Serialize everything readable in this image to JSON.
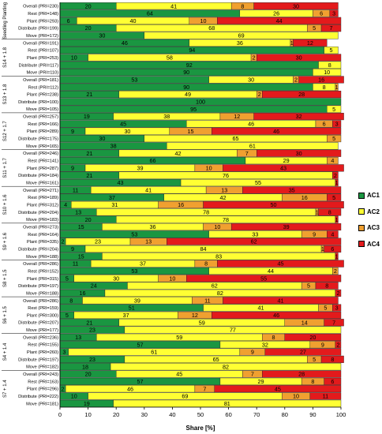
{
  "chart_data": {
    "type": "bar",
    "orientation": "horizontal-stacked",
    "xlabel": "Share [%]",
    "xlim": [
      0,
      100
    ],
    "xticks": [
      0,
      10,
      20,
      30,
      40,
      50,
      60,
      70,
      80,
      90,
      100
    ],
    "legend": {
      "placement": "right",
      "entries": [
        "AC1",
        "AC2",
        "AC3",
        "AC4"
      ]
    },
    "colors": {
      "AC1": "#1a9641",
      "AC2": "#ffff33",
      "AC3": "#f0a030",
      "AC4": "#e31a1c"
    },
    "series": [
      {
        "name": "AC1"
      },
      {
        "name": "AC2"
      },
      {
        "name": "AC3"
      },
      {
        "name": "AC4"
      }
    ],
    "groups": [
      {
        "label": "Seedling Planting",
        "rows": [
          {
            "label": "Overall (PRI=230)",
            "values": [
              20,
              41,
              8,
              30
            ]
          },
          {
            "label": "Rest (PRI=148)",
            "values": [
              64,
              26,
              6,
              3
            ]
          },
          {
            "label": "Plant (PRI=293)",
            "values": [
              6,
              40,
              10,
              44
            ]
          },
          {
            "label": "Distribute (PRI=199)",
            "values": [
              20,
              68,
              5,
              7
            ]
          },
          {
            "label": "Move (PRI=172)",
            "values": [
              30,
              69,
              0,
              0
            ]
          }
        ]
      },
      {
        "label": "S14 + 1.8",
        "rows": [
          {
            "label": "Overall (PRI=191)",
            "values": [
              46,
              36,
              1,
              12
            ]
          },
          {
            "label": "Rest (PRI=107)",
            "values": [
              94,
              5,
              0,
              0
            ]
          },
          {
            "label": "Plant (PRI=253)",
            "values": [
              10,
              58,
              2,
              30
            ]
          },
          {
            "label": "Distribute (PRI=117)",
            "values": [
              92,
              8,
              0,
              0
            ]
          },
          {
            "label": "Move (PRI=110)",
            "values": [
              90,
              10,
              0,
              0
            ]
          }
        ]
      },
      {
        "label": "S13 + 1.8",
        "rows": [
          {
            "label": "Overall (PRI=181)",
            "values": [
              53,
              30,
              2,
              16
            ]
          },
          {
            "label": "Rest (PRI=112)",
            "values": [
              90,
              8,
              1,
              0
            ]
          },
          {
            "label": "Plant (PRI=238)",
            "values": [
              21,
              49,
              2,
              28
            ]
          },
          {
            "label": "Distribute (PRI=100)",
            "values": [
              100,
              0,
              0,
              0
            ]
          },
          {
            "label": "Move (PRI=105)",
            "values": [
              95,
              5,
              0,
              0
            ]
          }
        ]
      },
      {
        "label": "S12 + 1.7",
        "rows": [
          {
            "label": "Overall (PRI=257)",
            "values": [
              19,
              38,
              12,
              32
            ]
          },
          {
            "label": "Rest (PRI=166)",
            "values": [
              45,
              46,
              6,
              3
            ]
          },
          {
            "label": "Plant (PRI=289)",
            "values": [
              9,
              30,
              15,
              46
            ]
          },
          {
            "label": "Distribute (PRI=175)",
            "values": [
              30,
              65,
              5,
              0
            ]
          },
          {
            "label": "Move (PRI=165)",
            "values": [
              38,
              61,
              0,
              0
            ]
          }
        ]
      },
      {
        "label": "S11 + 1.7",
        "rows": [
          {
            "label": "Overall (PRI=246)",
            "values": [
              21,
              42,
              7,
              30
            ]
          },
          {
            "label": "Rest (PRI=141)",
            "values": [
              66,
              29,
              4,
              0
            ]
          },
          {
            "label": "Plant (PRI=287)",
            "values": [
              9,
              39,
              10,
              43
            ]
          },
          {
            "label": "Distribute (PRI=184)",
            "values": [
              21,
              76,
              0,
              2
            ]
          },
          {
            "label": "Move (PRI=161)",
            "values": [
              43,
              55,
              0,
              1
            ]
          }
        ]
      },
      {
        "label": "S10 + 1.6",
        "rows": [
          {
            "label": "Overall (PRI=271)",
            "values": [
              11,
              41,
              13,
              35
            ]
          },
          {
            "label": "Rest (PRI=189)",
            "values": [
              37,
              42,
              16,
              5
            ]
          },
          {
            "label": "Plant (PRI=312)",
            "values": [
              4,
              31,
              16,
              50
            ]
          },
          {
            "label": "Distribute (PRI=204)",
            "values": [
              13,
              78,
              1,
              8
            ]
          },
          {
            "label": "Move (PRI=183)",
            "values": [
              20,
              78,
              0,
              1
            ]
          }
        ]
      },
      {
        "label": "S9 + 1.6",
        "rows": [
          {
            "label": "Overall (PRI=273)",
            "values": [
              15,
              36,
              10,
              39
            ]
          },
          {
            "label": "Rest (PRI=164)",
            "values": [
              53,
              33,
              9,
              4
            ]
          },
          {
            "label": "Plant (PRI=335)",
            "values": [
              2,
              23,
              13,
              62
            ]
          },
          {
            "label": "Distribute (PRI=204)",
            "values": [
              9,
              84,
              1,
              6
            ]
          },
          {
            "label": "Move (PRI=188)",
            "values": [
              15,
              83,
              0,
              1
            ]
          }
        ]
      },
      {
        "label": "S8 + 1.5",
        "rows": [
          {
            "label": "Overall (PRI=286)",
            "values": [
              11,
              37,
              8,
              45
            ]
          },
          {
            "label": "Rest (PRI=152)",
            "values": [
              53,
              44,
              2,
              0
            ]
          },
          {
            "label": "Plant (PRI=315)",
            "values": [
              5,
              30,
              10,
              55
            ]
          },
          {
            "label": "Distribute (PRI=197)",
            "values": [
              24,
              62,
              5,
              8
            ]
          },
          {
            "label": "Move (PRI=188)",
            "values": [
              16,
              82,
              0,
              2
            ]
          }
        ]
      },
      {
        "label": "S6 + 1.5",
        "rows": [
          {
            "label": "Overall (PRI=286)",
            "values": [
              8,
              39,
              11,
              41
            ]
          },
          {
            "label": "Rest (PRI=159)",
            "values": [
              51,
              41,
              5,
              3
            ]
          },
          {
            "label": "Plant (PRI=300)",
            "values": [
              5,
              37,
              12,
              46
            ]
          },
          {
            "label": "Distribute (PRI=207)",
            "values": [
              21,
              59,
              14,
              7
            ]
          },
          {
            "label": "Move (PRI=177)",
            "values": [
              23,
              77,
              0,
              0
            ]
          }
        ]
      },
      {
        "label": "S4 + 1.4",
        "rows": [
          {
            "label": "Overall (PRI=236)",
            "values": [
              13,
              59,
              8,
              20
            ]
          },
          {
            "label": "Rest (PRI=155)",
            "values": [
              57,
              32,
              9,
              2
            ]
          },
          {
            "label": "Plant (PRI=260)",
            "values": [
              3,
              61,
              9,
              27
            ]
          },
          {
            "label": "Distribute (PRI=197)",
            "values": [
              23,
              65,
              5,
              8
            ]
          },
          {
            "label": "Move (PRI=182)",
            "values": [
              18,
              82,
              0,
              0
            ]
          }
        ]
      },
      {
        "label": "S7 + 1.4",
        "rows": [
          {
            "label": "Overall (PRI=243)",
            "values": [
              20,
              45,
              7,
              28
            ]
          },
          {
            "label": "Rest (PRI=163)",
            "values": [
              57,
              29,
              8,
              6
            ]
          },
          {
            "label": "Plant (PRI=296)",
            "values": [
              2,
              46,
              7,
              45
            ]
          },
          {
            "label": "Distribute (PRI=222)",
            "values": [
              10,
              69,
              10,
              11
            ]
          },
          {
            "label": "Move (PRI=181)",
            "values": [
              19,
              81,
              0,
              0
            ]
          }
        ]
      }
    ]
  }
}
